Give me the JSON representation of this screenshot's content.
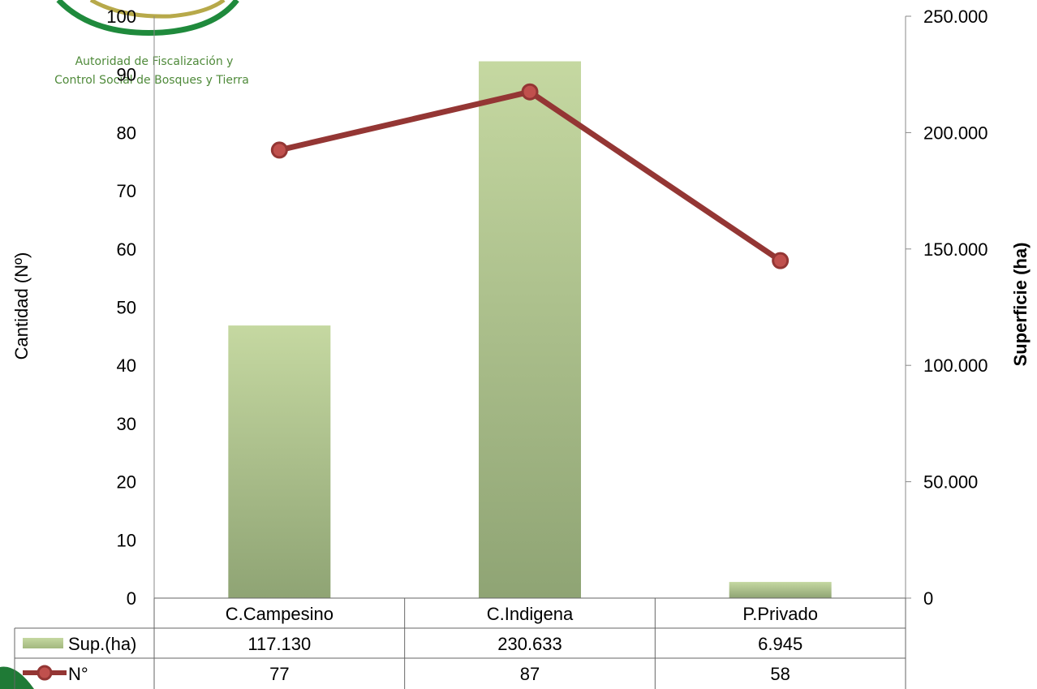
{
  "organization": {
    "name_line1": "Autoridad de Fiscalización y",
    "name_line2": "Control Social de Bosques y Tierra"
  },
  "chart_data": {
    "type": "bar",
    "categories": [
      "C.Campesino",
      "C.Indigena",
      "P.Privado"
    ],
    "series": [
      {
        "name": "Sup.(ha)",
        "type": "bar",
        "axis": "secondary",
        "values": [
          117130,
          230633,
          6945
        ],
        "labels": [
          "117.130",
          "230.633",
          "6.945"
        ],
        "color": "#a3b87f"
      },
      {
        "name": "N°",
        "type": "line",
        "axis": "primary",
        "values": [
          77,
          87,
          58
        ],
        "labels": [
          "77",
          "87",
          "58"
        ],
        "color": "#943634"
      }
    ],
    "ylabel": "Cantidad (Nº)",
    "y2label": "Superficie (ha)",
    "ylim": [
      0,
      100
    ],
    "y2lim": [
      0,
      250000
    ],
    "yticks": [
      "0",
      "10",
      "20",
      "30",
      "40",
      "50",
      "60",
      "70",
      "80",
      "90",
      "100"
    ],
    "y2ticks": [
      "0",
      "50.000",
      "100.000",
      "150.000",
      "200.000",
      "250.000"
    ],
    "data_table": true,
    "grid": false
  }
}
